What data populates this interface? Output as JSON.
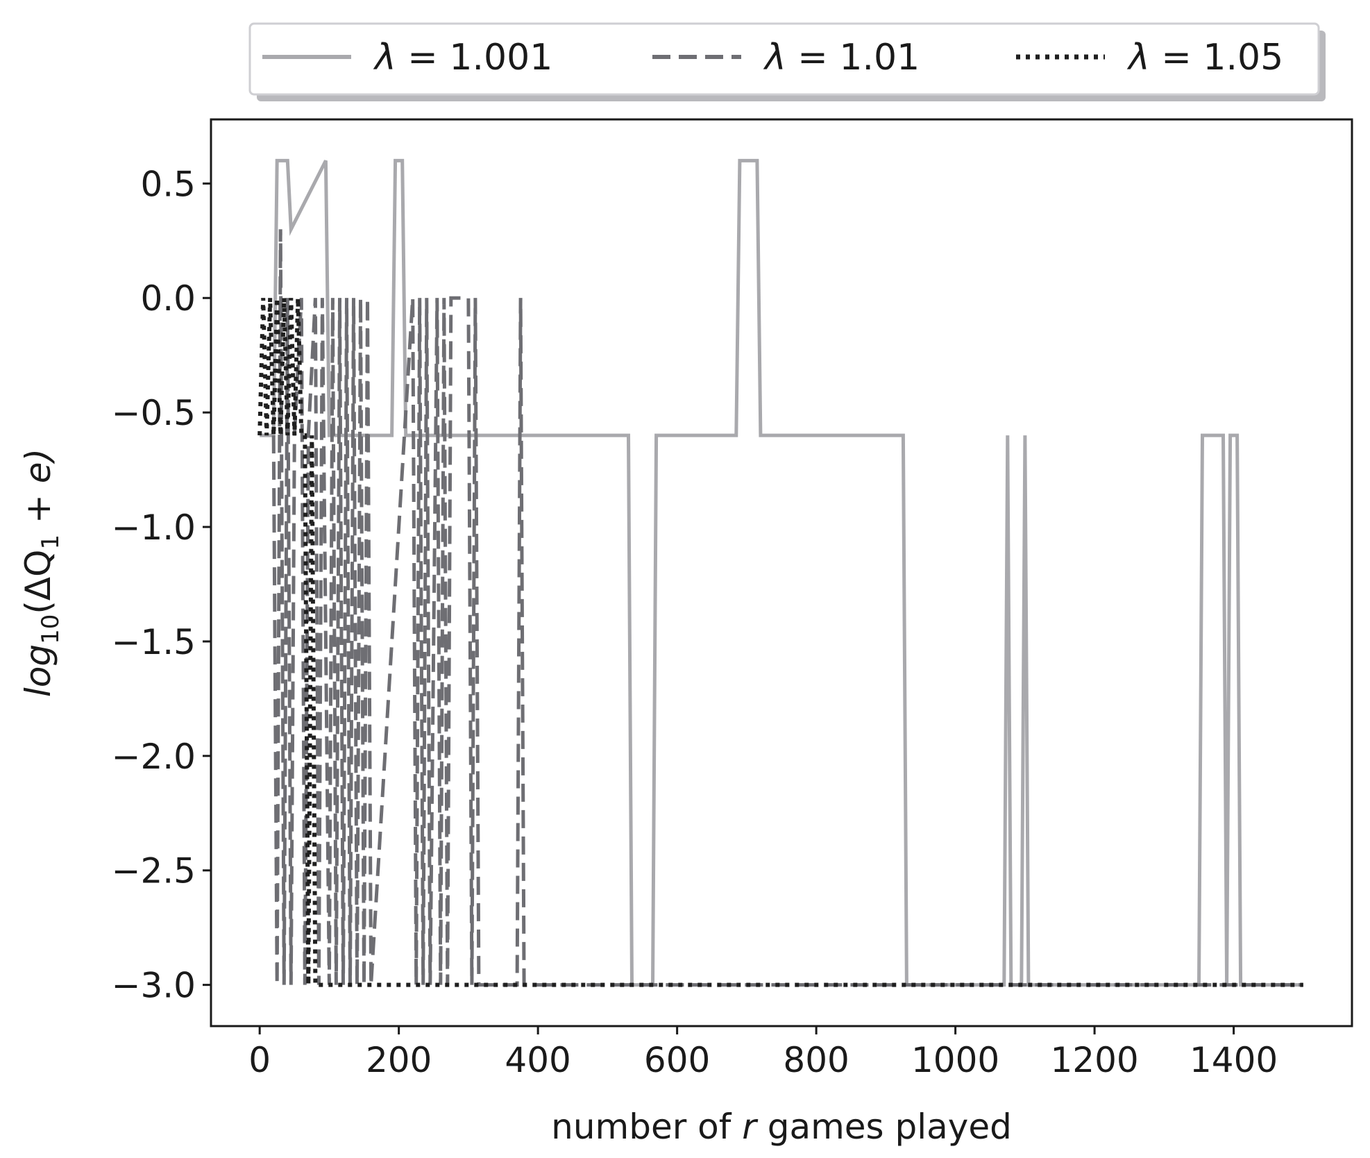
{
  "chart_data": {
    "type": "line",
    "title": "",
    "xlabel": {
      "pre": "number of ",
      "var": "r",
      "post": " games played"
    },
    "ylabel": {
      "base": "log",
      "sub": "10",
      "pre": "(ΔQ",
      "sub2": "1",
      "post": " + e)"
    },
    "xlim": [
      -70,
      1570
    ],
    "ylim": [
      -3.18,
      0.78
    ],
    "xticks": [
      0,
      200,
      400,
      600,
      800,
      1000,
      1200,
      1400
    ],
    "xtick_labels": [
      "0",
      "200",
      "400",
      "600",
      "800",
      "1000",
      "1200",
      "1400"
    ],
    "yticks": [
      0.5,
      0.0,
      -0.5,
      -1.0,
      -1.5,
      -2.0,
      -2.5,
      -3.0
    ],
    "ytick_labels": [
      "0.5",
      "0.0",
      "−0.5",
      "−1.0",
      "−1.5",
      "−2.0",
      "−2.5",
      "−3.0"
    ],
    "grid": false,
    "legend": {
      "placement": "top-outside",
      "columns": 3
    },
    "series": [
      {
        "name": "λ = 1.001",
        "label_parts": {
          "sym": "λ",
          "val": " = 1.001"
        },
        "color": "#a9a9ad",
        "style": "solid",
        "x": [
          0,
          20,
          25,
          40,
          45,
          95,
          100,
          190,
          195,
          205,
          210,
          530,
          535,
          565,
          570,
          685,
          690,
          715,
          720,
          925,
          930,
          1070,
          1075,
          1080,
          1095,
          1100,
          1105,
          1350,
          1355,
          1385,
          1390,
          1395,
          1405,
          1410,
          1415,
          1500
        ],
        "y": [
          -0.6,
          -0.6,
          0.6,
          0.6,
          0.3,
          0.6,
          -0.6,
          -0.6,
          0.6,
          0.6,
          -0.6,
          -0.6,
          -3.0,
          -3.0,
          -0.6,
          -0.6,
          0.6,
          0.6,
          -0.6,
          -0.6,
          -3.0,
          -3.0,
          -0.6,
          -3.0,
          -3.0,
          -0.6,
          -3.0,
          -3.0,
          -0.6,
          -0.6,
          -3.0,
          -0.6,
          -0.6,
          -3.0,
          -3.0,
          -3.0
        ]
      },
      {
        "name": "λ = 1.01",
        "label_parts": {
          "sym": "λ",
          "val": " = 1.01"
        },
        "color": "#6e6e73",
        "style": "dashed",
        "x": [
          20,
          25,
          30,
          35,
          40,
          45,
          50,
          60,
          65,
          70,
          80,
          85,
          90,
          100,
          105,
          110,
          115,
          120,
          125,
          130,
          135,
          140,
          145,
          150,
          155,
          160,
          220,
          225,
          230,
          235,
          240,
          245,
          255,
          260,
          265,
          270,
          275,
          300,
          305,
          310,
          315,
          370,
          375,
          380,
          1500
        ],
        "y": [
          -0.6,
          -3.0,
          0.3,
          -3.0,
          0.0,
          -3.0,
          -0.6,
          0.0,
          -3.0,
          -0.6,
          0.0,
          -3.0,
          0.0,
          -3.0,
          0.0,
          -3.0,
          0.0,
          -3.0,
          0.0,
          -3.0,
          0.0,
          -3.0,
          0.0,
          -3.0,
          0.0,
          -3.0,
          0.0,
          -3.0,
          0.0,
          -3.0,
          0.0,
          -3.0,
          0.0,
          -3.0,
          0.0,
          -3.0,
          0.0,
          0.0,
          -3.0,
          0.0,
          -3.0,
          -3.0,
          0.0,
          -3.0,
          -3.0
        ]
      },
      {
        "name": "λ = 1.05",
        "label_parts": {
          "sym": "λ",
          "val": " = 1.05"
        },
        "color": "#1f1f1f",
        "style": "dotted",
        "x": [
          0,
          5,
          10,
          15,
          20,
          25,
          30,
          35,
          40,
          45,
          50,
          55,
          60,
          65,
          70,
          75,
          80,
          90,
          1500
        ],
        "y": [
          -0.6,
          0.0,
          -0.6,
          0.0,
          -0.6,
          0.0,
          -0.6,
          0.0,
          -0.6,
          0.0,
          -0.6,
          0.0,
          -0.6,
          -0.6,
          -3.0,
          -0.6,
          -3.0,
          -3.0,
          -3.0
        ]
      }
    ]
  }
}
